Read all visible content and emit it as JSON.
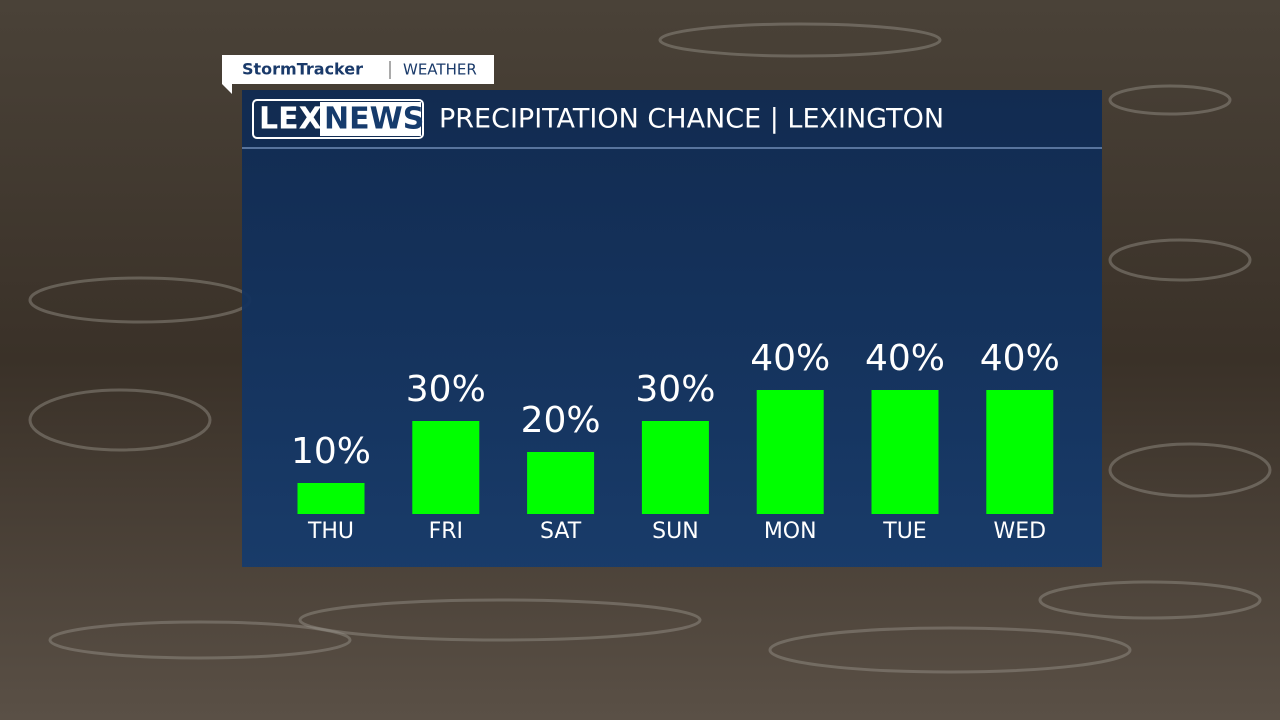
{
  "brand": {
    "program": "StormTracker",
    "section": "WEATHER",
    "logo_left": "LEX",
    "logo_right": "NEWS"
  },
  "chart_data": {
    "type": "bar",
    "title": "PRECIPITATION CHANCE | LEXINGTON",
    "categories": [
      "THU",
      "FRI",
      "SAT",
      "SUN",
      "MON",
      "TUE",
      "WED"
    ],
    "values": [
      10,
      30,
      20,
      30,
      40,
      40,
      40
    ],
    "value_labels": [
      "10%",
      "30%",
      "20%",
      "30%",
      "40%",
      "40%",
      "40%"
    ],
    "color": "#00ff00"
  }
}
